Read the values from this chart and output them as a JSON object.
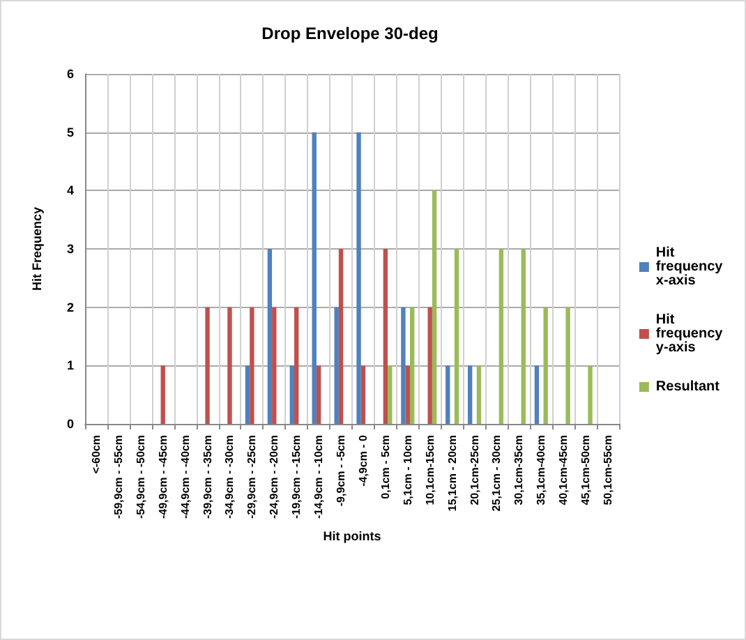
{
  "chart_data": {
    "type": "bar",
    "title": "Drop Envelope 30-deg",
    "xlabel": "Hit points",
    "ylabel": "Hit Frequency",
    "categories": [
      "<-60cm",
      "-59,9cm - -55cm",
      "-54,9cm - -50cm",
      "-49,9cm - -45cm",
      "-44,9cm - -40cm",
      "-39,9cm - -35cm",
      "-34,9cm - -30cm",
      "-29,9cm - -25cm",
      "-24,9cm - -20cm",
      "-19,9cm - -15cm",
      "-14,9cm - -10cm",
      "-9,9cm - -5cm",
      "-4,9cm - 0",
      "0,1cm - 5cm",
      "5,1cm - 10cm",
      "10,1cm-15cm",
      "15,1cm - 20cm",
      "20,1cm-25cm",
      "25,1cm - 30cm",
      "30,1cm-35cm",
      "35,1cm-40cm",
      "40,1cm-45cm",
      "45,1cm-50cm",
      "50,1cm-55cm"
    ],
    "series": [
      {
        "name": "Hit frequency x-axis",
        "color": "#4f81bd",
        "values": [
          0,
          0,
          0,
          0,
          0,
          0,
          0,
          1,
          3,
          1,
          5,
          2,
          5,
          0,
          2,
          0,
          1,
          1,
          0,
          0,
          1,
          0,
          0,
          0
        ]
      },
      {
        "name": "Hit frequency y-axis",
        "color": "#c0504d",
        "values": [
          0,
          0,
          0,
          1,
          0,
          2,
          2,
          2,
          2,
          2,
          1,
          3,
          1,
          3,
          1,
          2,
          0,
          0,
          0,
          0,
          0,
          0,
          0,
          0
        ]
      },
      {
        "name": "Resultant",
        "color": "#9bbb59",
        "values": [
          0,
          0,
          0,
          0,
          0,
          0,
          0,
          0,
          0,
          0,
          0,
          0,
          0,
          1,
          2,
          4,
          3,
          1,
          3,
          3,
          2,
          2,
          1,
          0
        ]
      }
    ],
    "ylim": [
      0,
      6
    ],
    "yticks": [
      0,
      1,
      2,
      3,
      4,
      5,
      6
    ],
    "grid": true,
    "legend": "right"
  }
}
